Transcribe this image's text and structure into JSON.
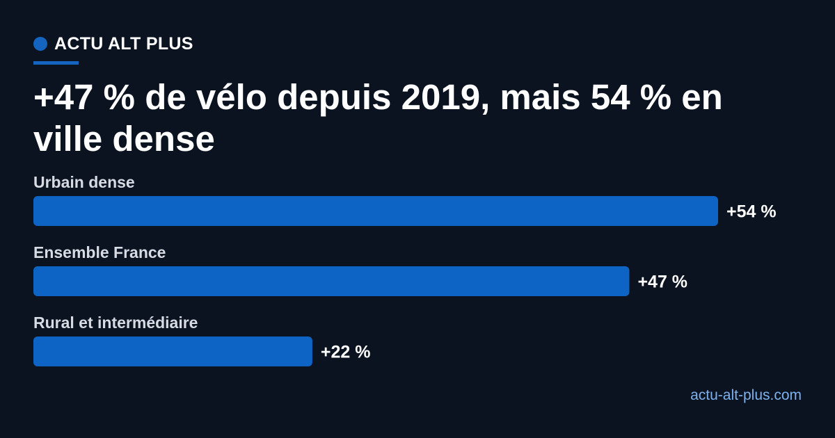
{
  "brand": {
    "name": "ACTU ALT PLUS"
  },
  "headline": "+47 % de vélo depuis 2019, mais 54 % en ville dense",
  "footer": {
    "source": "actu-alt-plus.com"
  },
  "colors": {
    "background": "#0b1220",
    "accent": "#1565c0",
    "bar": "#0d64c4",
    "category_label": "#d7dce4",
    "value_label": "#ffffff",
    "source": "#7fb2ec"
  },
  "chart_data": {
    "type": "bar",
    "orientation": "horizontal",
    "categories": [
      "Urbain dense",
      "Ensemble France",
      "Rural et intermédiaire"
    ],
    "values": [
      54,
      47,
      22
    ],
    "value_labels": [
      "+54 %",
      "+47 %",
      "+22 %"
    ],
    "unit": "%",
    "xlim": [
      0,
      54
    ],
    "grid": false,
    "legend": "none"
  }
}
